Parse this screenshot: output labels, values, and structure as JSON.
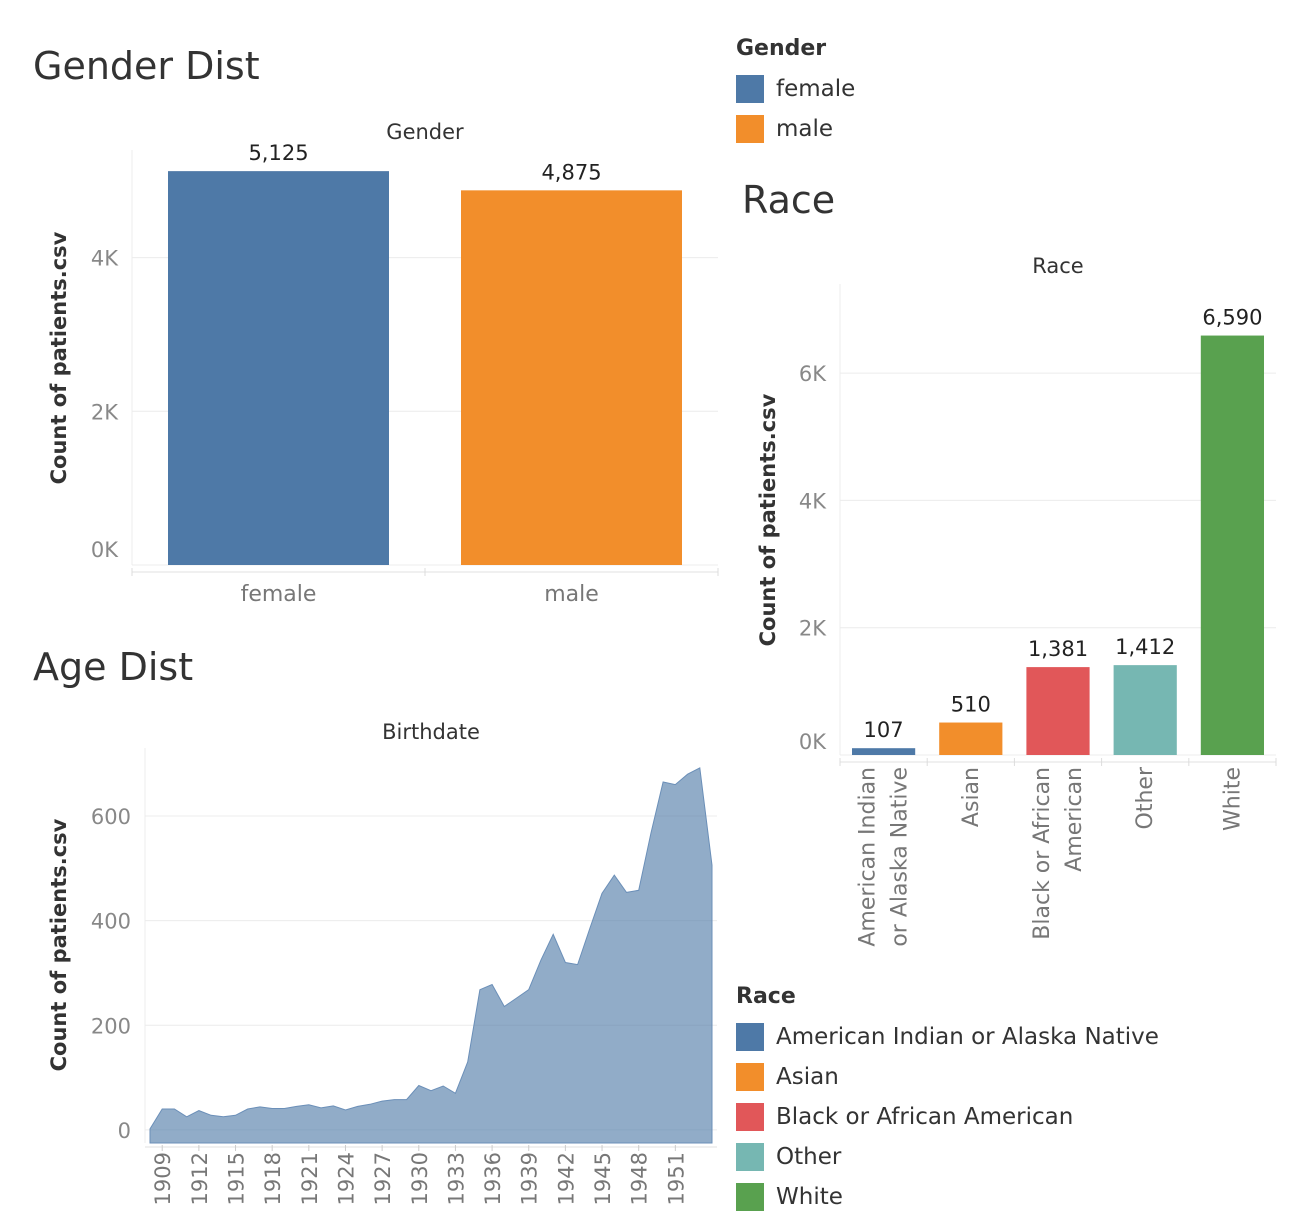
{
  "titles": {
    "gender": "Gender Dist",
    "race": "Race",
    "age": "Age Dist"
  },
  "legends": {
    "gender": {
      "title": "Gender",
      "items": [
        {
          "label": "female",
          "color": "#4e79a7"
        },
        {
          "label": "male",
          "color": "#f28e2b"
        }
      ]
    },
    "race": {
      "title": "Race",
      "items": [
        {
          "label": "American Indian or Alaska Native",
          "color": "#4e79a7"
        },
        {
          "label": "Asian",
          "color": "#f28e2b"
        },
        {
          "label": "Black or African American",
          "color": "#e15759"
        },
        {
          "label": "Other",
          "color": "#76b7b2"
        },
        {
          "label": "White",
          "color": "#59a14f"
        }
      ]
    }
  },
  "chart_data": [
    {
      "id": "gender",
      "type": "bar",
      "title": "Gender",
      "ylabel": "Count of patients.csv",
      "categories": [
        "female",
        "male"
      ],
      "values": [
        5125,
        4875
      ],
      "value_labels": [
        "5,125",
        "4,875"
      ],
      "colors": [
        "#4e79a7",
        "#f28e2b"
      ],
      "ylim": [
        0,
        5400
      ],
      "yticks": [
        0,
        2000,
        4000
      ],
      "ytick_labels": [
        "0K",
        "2K",
        "4K"
      ],
      "grid": true
    },
    {
      "id": "race",
      "type": "bar",
      "title": "Race",
      "ylabel": "Count of patients.csv",
      "categories": [
        "American Indian or Alaska Native",
        "Asian",
        "Black or African American",
        "Other",
        "White"
      ],
      "category_lines": [
        [
          "American Indian",
          "or Alaska Native"
        ],
        [
          "Asian"
        ],
        [
          "Black or African",
          "American"
        ],
        [
          "Other"
        ],
        [
          "White"
        ]
      ],
      "values": [
        107,
        510,
        1381,
        1412,
        6590
      ],
      "value_labels": [
        "107",
        "510",
        "1,381",
        "1,412",
        "6,590"
      ],
      "colors": [
        "#4e79a7",
        "#f28e2b",
        "#e15759",
        "#76b7b2",
        "#59a14f"
      ],
      "ylim": [
        0,
        7400
      ],
      "yticks": [
        0,
        2000,
        4000,
        6000
      ],
      "ytick_labels": [
        "0K",
        "2K",
        "4K",
        "6K"
      ],
      "grid": true
    },
    {
      "id": "age",
      "type": "area",
      "title": "Birthdate",
      "ylabel": "Count of patients.csv",
      "x": [
        1908,
        1909,
        1910,
        1911,
        1912,
        1913,
        1914,
        1915,
        1916,
        1917,
        1918,
        1919,
        1920,
        1921,
        1922,
        1923,
        1924,
        1925,
        1926,
        1927,
        1928,
        1929,
        1930,
        1931,
        1932,
        1933,
        1934,
        1935,
        1936,
        1937,
        1938,
        1939,
        1940,
        1941,
        1942,
        1943,
        1944,
        1945,
        1946,
        1947,
        1948,
        1949,
        1950,
        1951,
        1952,
        1953,
        1954
      ],
      "values": [
        2,
        40,
        40,
        25,
        37,
        28,
        25,
        28,
        40,
        44,
        41,
        41,
        45,
        48,
        42,
        46,
        38,
        45,
        49,
        55,
        58,
        58,
        85,
        75,
        84,
        70,
        130,
        268,
        278,
        236,
        252,
        268,
        325,
        374,
        320,
        316,
        385,
        452,
        487,
        454,
        458,
        567,
        665,
        660,
        680,
        692,
        506
      ],
      "color": "#4e79a7",
      "ylim": [
        -25,
        730
      ],
      "yticks": [
        0,
        200,
        400,
        600
      ],
      "ytick_labels": [
        "0",
        "200",
        "400",
        "600"
      ],
      "xticks": [
        1909,
        1912,
        1915,
        1918,
        1921,
        1924,
        1927,
        1930,
        1933,
        1936,
        1939,
        1942,
        1945,
        1948,
        1951
      ],
      "grid": true
    }
  ]
}
